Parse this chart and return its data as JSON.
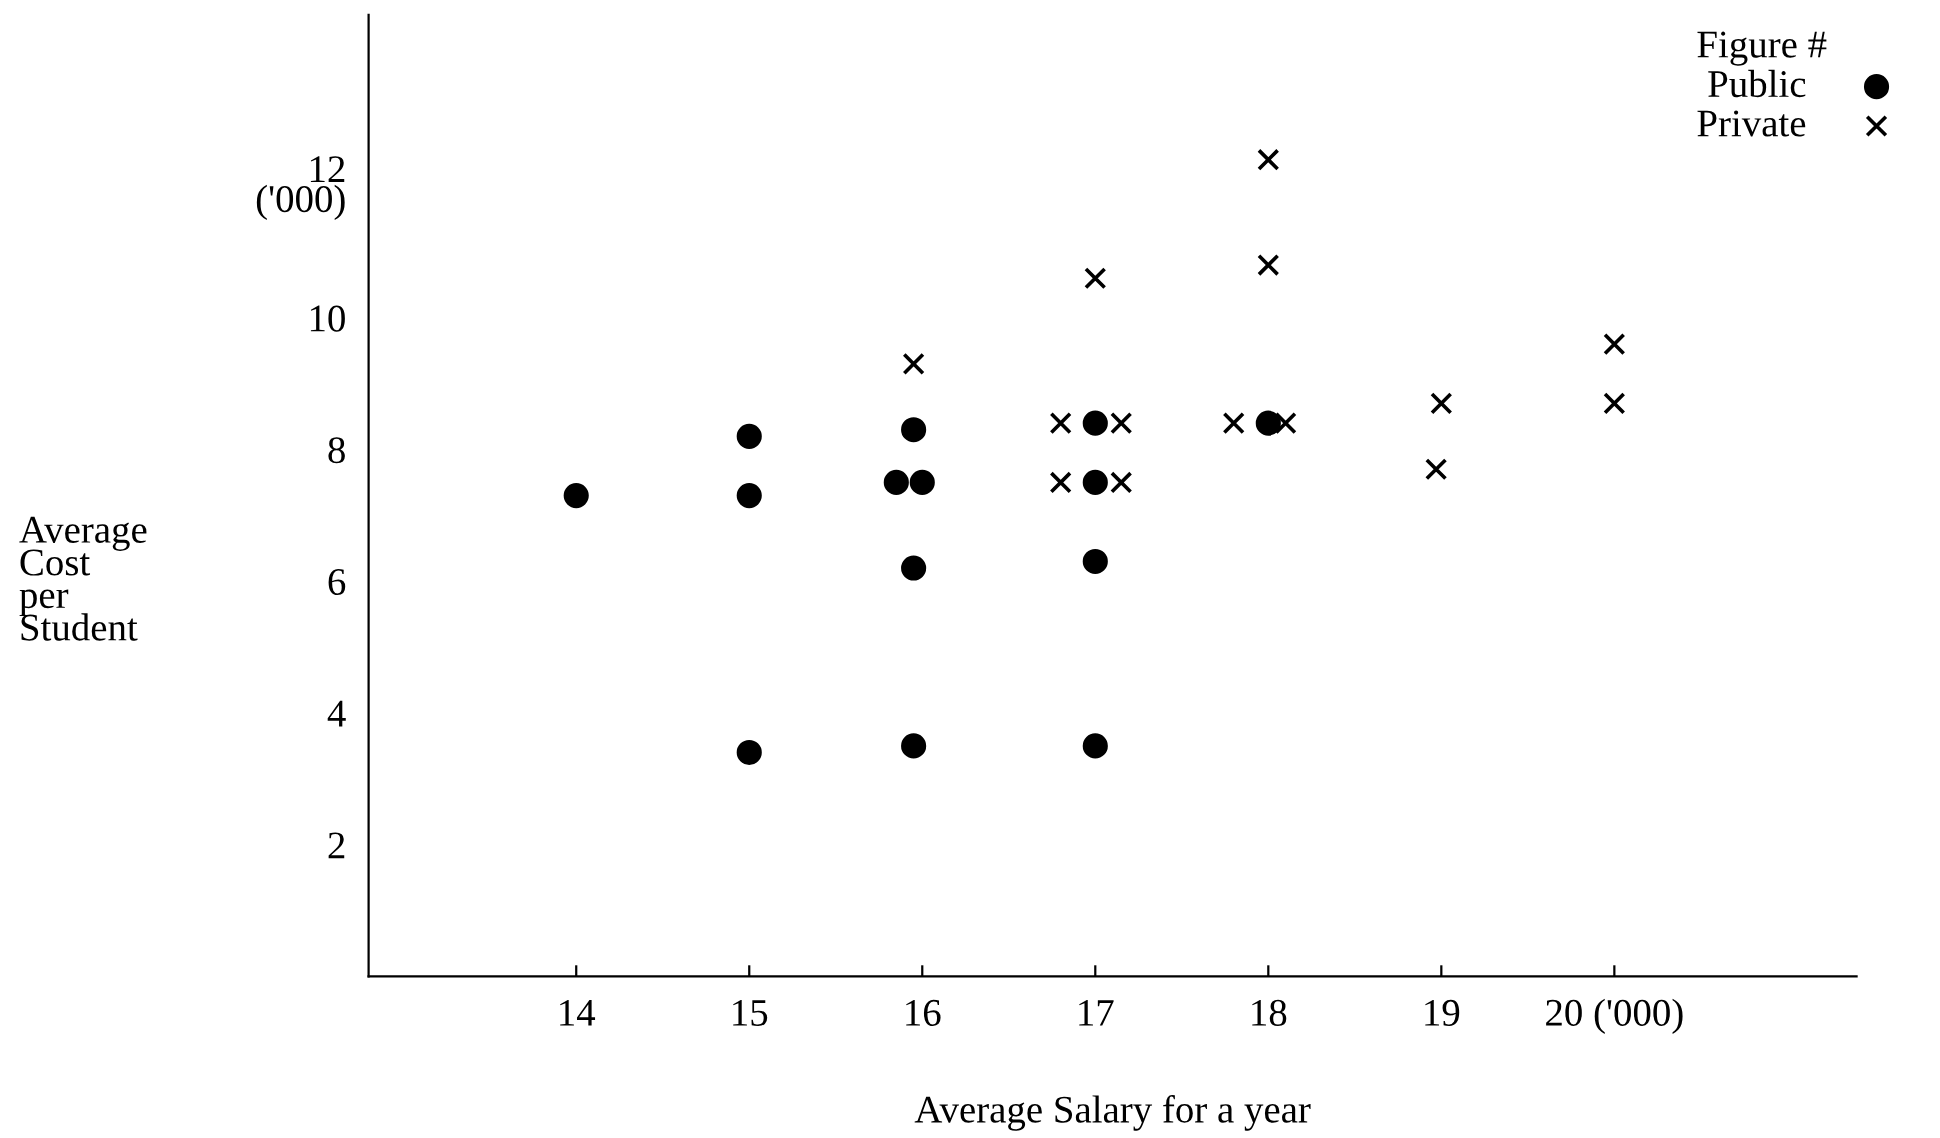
{
  "chart_data": {
    "type": "scatter",
    "xlabel": "Average Salary for a year",
    "ylabel": "Average\nCost\nper\nStudent",
    "legend_title": "Figure #",
    "legend": "top right",
    "grid": false,
    "xlim": [
      12.8,
      21.4
    ],
    "ylim": [
      0,
      14.6
    ],
    "xticks": [
      14,
      15,
      16,
      17,
      18,
      19,
      {
        "value": 20,
        "label": "20 ('000)"
      }
    ],
    "yticks": [
      2,
      4,
      6,
      {
        "value": 8,
        "label": "8"
      },
      10,
      {
        "value": 12,
        "label": "12\n('000)"
      }
    ],
    "series": [
      {
        "name": "Public",
        "color": "#000000",
        "marker": "circle",
        "x": [
          14,
          15,
          15,
          15,
          15.95,
          15.85,
          16.0,
          15.95,
          15.95,
          17,
          17,
          17,
          17,
          18
        ],
        "values": [
          7.3,
          8.2,
          7.3,
          3.4,
          8.3,
          7.5,
          7.5,
          6.2,
          3.5,
          8.4,
          7.5,
          6.3,
          3.5,
          8.4
        ]
      },
      {
        "name": "Private",
        "color": "#000000",
        "marker": "cross",
        "x": [
          15.95,
          17,
          16.8,
          17.15,
          16.8,
          17.15,
          18,
          18,
          17.8,
          18.1,
          19,
          18.97,
          20,
          20
        ],
        "values": [
          9.3,
          10.6,
          8.4,
          8.4,
          7.5,
          7.5,
          12.4,
          10.8,
          8.4,
          8.4,
          8.7,
          7.7,
          9.6,
          8.7
        ]
      }
    ]
  }
}
